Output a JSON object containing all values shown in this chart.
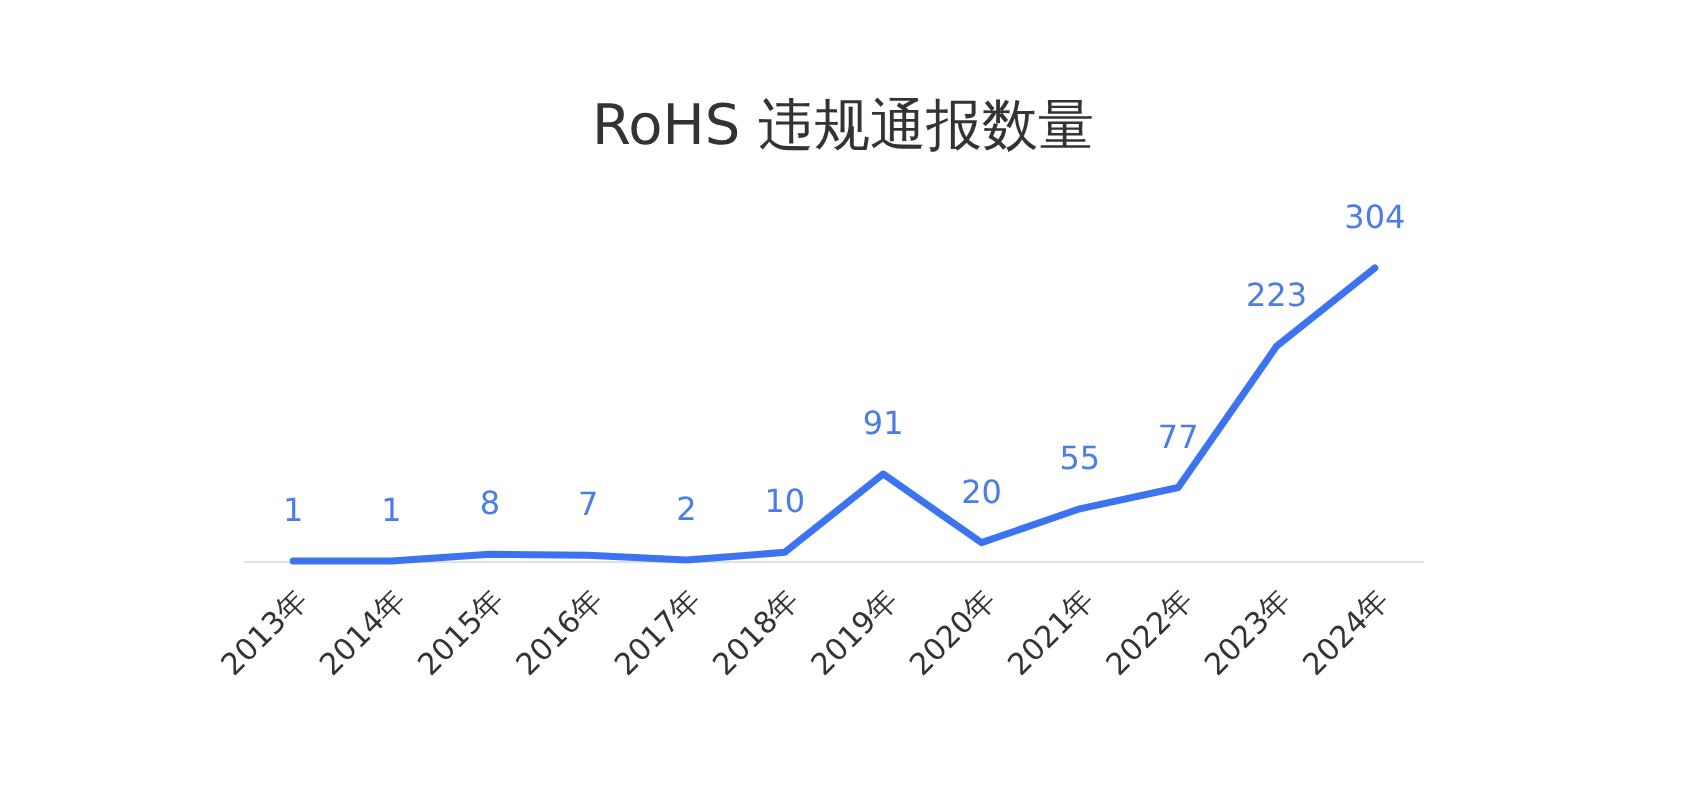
{
  "chart_data": {
    "type": "line",
    "title": "RoHS 违规通报数量",
    "categories": [
      "2013年",
      "2014年",
      "2015年",
      "2016年",
      "2017年",
      "2018年",
      "2019年",
      "2020年",
      "2021年",
      "2022年",
      "2023年",
      "2024年"
    ],
    "series": [
      {
        "color": "#3b73f0",
        "values": [
          1,
          1,
          8,
          7,
          2,
          10,
          91,
          20,
          55,
          77,
          223,
          304
        ]
      }
    ],
    "data_labels": true,
    "marker": "none",
    "line_style": "solid"
  }
}
